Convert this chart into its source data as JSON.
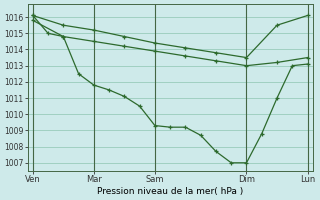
{
  "bg_color": "#ceeaea",
  "grid_color": "#99ccbb",
  "line_color": "#2d6a2d",
  "xlabel": "Pression niveau de la mer( hPa )",
  "ylim": [
    1006.5,
    1016.8
  ],
  "yticks": [
    1007,
    1008,
    1009,
    1010,
    1011,
    1012,
    1013,
    1014,
    1015,
    1016
  ],
  "x_day_positions": [
    0,
    48,
    96,
    168,
    216
  ],
  "x_day_labels": [
    "Ven",
    "Mar",
    "Sam",
    "Dim",
    "Lun"
  ],
  "vline_positions": [
    0,
    48,
    96,
    168,
    216
  ],
  "flat_line_x": [
    0,
    24,
    48,
    72,
    96,
    120,
    144,
    168,
    192,
    216
  ],
  "flat_line_y": [
    1016.1,
    1015.5,
    1015.2,
    1014.8,
    1014.4,
    1014.1,
    1013.8,
    1013.5,
    1015.5,
    1016.1
  ],
  "flat_line2_x": [
    0,
    24,
    48,
    72,
    96,
    120,
    144,
    168,
    192,
    216
  ],
  "flat_line2_y": [
    1015.8,
    1014.8,
    1014.5,
    1014.2,
    1013.9,
    1013.6,
    1013.3,
    1013.0,
    1013.2,
    1013.5
  ],
  "dip_line_x": [
    0,
    12,
    24,
    36,
    48,
    60,
    72,
    84,
    96,
    108,
    120,
    132,
    144,
    156,
    168,
    180,
    192,
    204,
    216
  ],
  "dip_line_y": [
    1016.1,
    1015.0,
    1014.8,
    1012.5,
    1011.8,
    1011.5,
    1011.1,
    1010.5,
    1009.3,
    1009.2,
    1009.2,
    1008.7,
    1007.7,
    1007.0,
    1007.0,
    1008.8,
    1011.0,
    1013.0,
    1013.1
  ]
}
